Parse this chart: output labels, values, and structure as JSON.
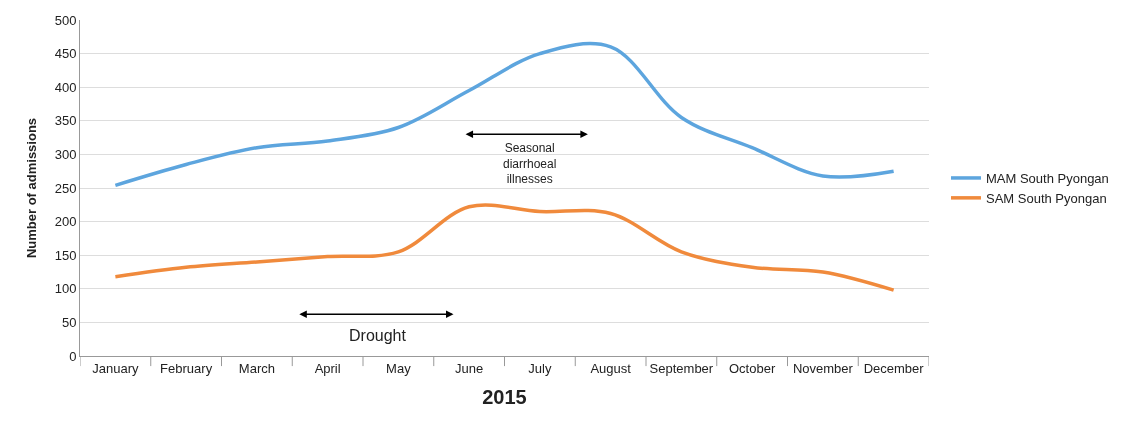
{
  "chart_data": {
    "type": "line",
    "xlabel": "2015",
    "ylabel": "Number of admissions",
    "categories": [
      "January",
      "February",
      "March",
      "April",
      "May",
      "June",
      "July",
      "August",
      "September",
      "October",
      "November",
      "December"
    ],
    "series": [
      {
        "name": "MAM South Pyongan",
        "color": "#5da5de",
        "values": [
          254,
          285,
          310,
          320,
          340,
          395,
          450,
          460,
          355,
          310,
          268,
          275
        ]
      },
      {
        "name": "SAM South Pyongan",
        "color": "#f08a3c",
        "values": [
          118,
          132,
          140,
          148,
          155,
          222,
          215,
          212,
          155,
          132,
          125,
          98
        ]
      }
    ],
    "ylim": [
      0,
      500
    ],
    "yticks": [
      0,
      50,
      100,
      150,
      200,
      250,
      300,
      350,
      400,
      450,
      500
    ],
    "grid": "y",
    "legend": "right",
    "marker": "none",
    "line_style": "solid",
    "annotations": [
      "Seasonal\ndiarrhoeal\nillnesses",
      "Drought"
    ]
  }
}
